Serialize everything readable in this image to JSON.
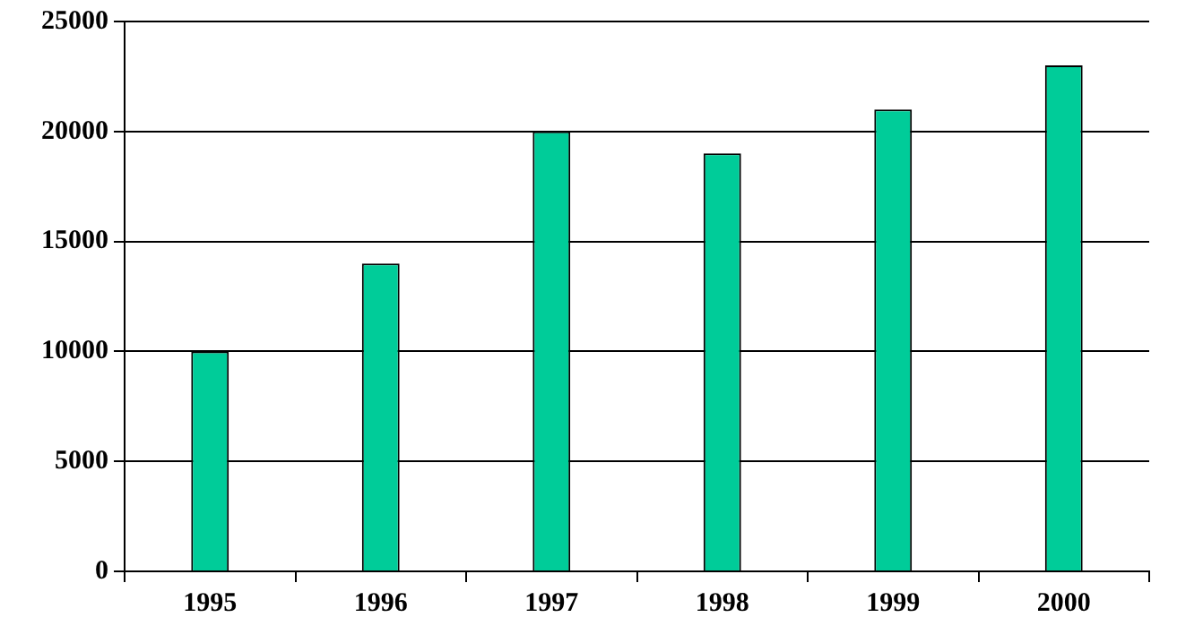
{
  "chart_data": {
    "type": "bar",
    "categories": [
      "1995",
      "1996",
      "1997",
      "1998",
      "1999",
      "2000"
    ],
    "values": [
      10000,
      14000,
      20000,
      19000,
      21000,
      23000
    ],
    "color": "#00cc99",
    "ylim": [
      0,
      25000
    ],
    "yticks": [
      0,
      5000,
      10000,
      15000,
      20000,
      25000
    ],
    "grid": "y"
  }
}
